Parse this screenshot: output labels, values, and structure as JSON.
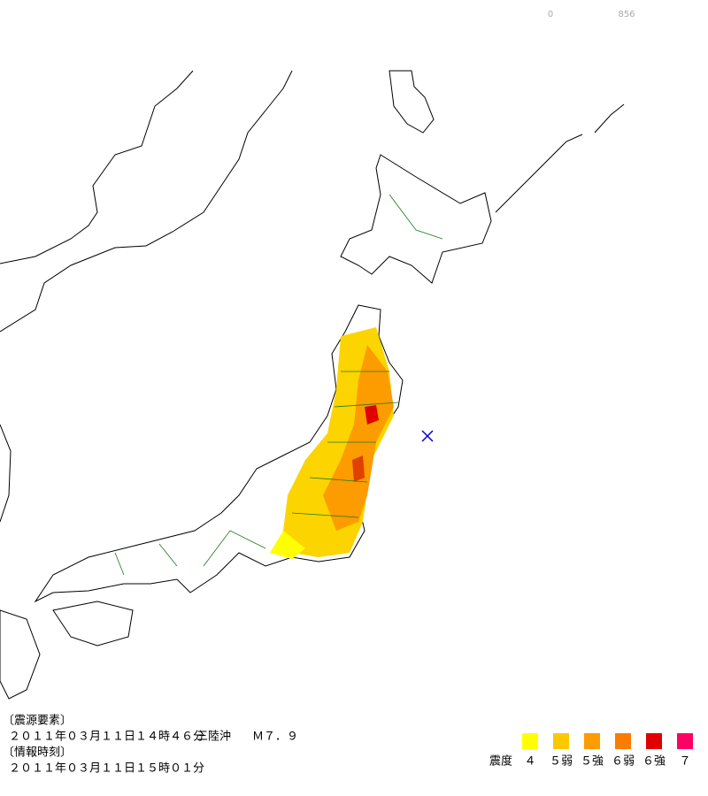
{
  "scale_labels": [
    "0",
    "856"
  ],
  "hypocenter": {
    "heading": "〔震源要素〕",
    "time": "２０１１年０３月１１日１４時４６分",
    "region": "三陸沖",
    "magnitude": "Ｍ７．９"
  },
  "report": {
    "heading": "〔情報時刻〕",
    "time": "２０１１年０３月１１日１５時０１分"
  },
  "legend": {
    "title": "震度",
    "items": [
      {
        "label": "４",
        "color": "#ffff00"
      },
      {
        "label": "５弱",
        "color": "#fcc800"
      },
      {
        "label": "５強",
        "color": "#fc9c00"
      },
      {
        "label": "６弱",
        "color": "#fc7c00"
      },
      {
        "label": "６強",
        "color": "#e00000"
      },
      {
        "label": "７",
        "color": "#ff0066"
      }
    ]
  }
}
